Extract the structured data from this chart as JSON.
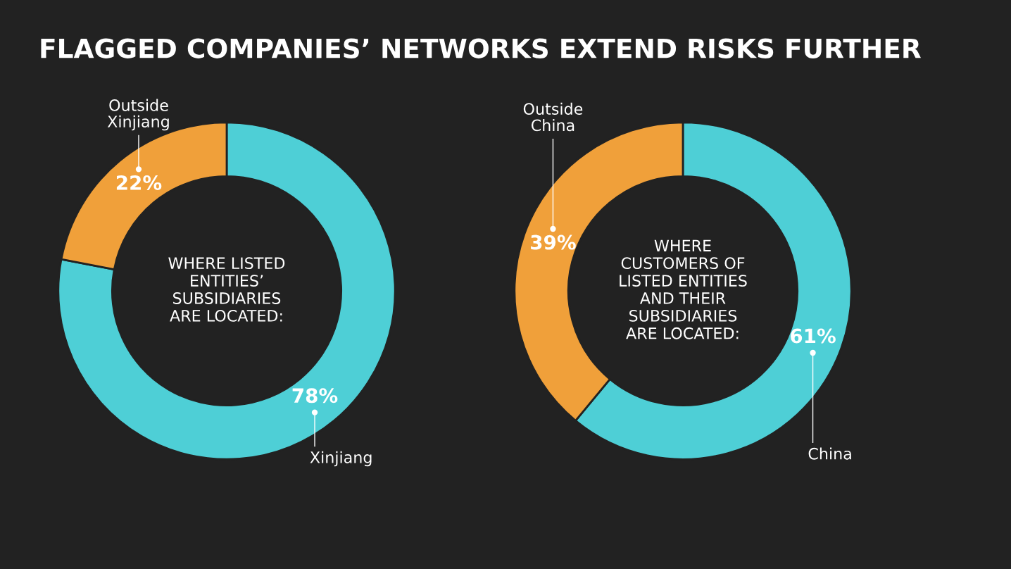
{
  "chart_data": [
    {
      "type": "donut",
      "title": "FLAGGED COMPANIES’ NETWORKS EXTEND RISKS FURTHER",
      "subtitle": "WHERE LISTED\nENTITIES’\nSUBSIDIARIES\nARE LOCATED:",
      "categories": [
        "Xinjiang",
        "Outside\nXinjiang"
      ],
      "values": [
        78,
        22
      ],
      "value_labels": [
        "78%",
        "22%"
      ],
      "colors": [
        "#4ecfd6",
        "#f0a03a"
      ]
    },
    {
      "type": "donut",
      "subtitle": "WHERE\nCUSTOMERS OF\nLISTED ENTITIES\nAND THEIR\nSUBSIDIARIES\nARE LOCATED:",
      "categories": [
        "China",
        "Outside\nChina"
      ],
      "values": [
        61,
        39
      ],
      "value_labels": [
        "61%",
        "39%"
      ],
      "colors": [
        "#4ecfd6",
        "#f0a03a"
      ]
    }
  ]
}
